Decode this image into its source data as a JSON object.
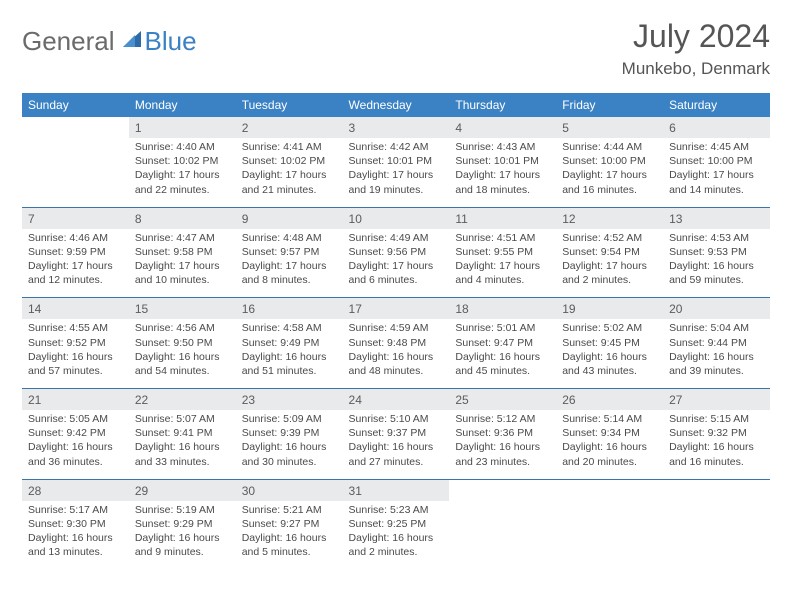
{
  "logo": {
    "text1": "General",
    "text2": "Blue"
  },
  "title": "July 2024",
  "location": "Munkebo, Denmark",
  "colors": {
    "header_bg": "#3b82c4",
    "header_text": "#ffffff",
    "daynum_bg": "#e9eaeb",
    "daynum_text": "#5c5c5c",
    "body_text": "#4a4a4a",
    "rule": "#3b75a8",
    "logo_gray": "#6b6b6b",
    "logo_blue": "#3b82c4"
  },
  "weekdays": [
    "Sunday",
    "Monday",
    "Tuesday",
    "Wednesday",
    "Thursday",
    "Friday",
    "Saturday"
  ],
  "weeks": [
    [
      null,
      {
        "d": "1",
        "sr": "4:40 AM",
        "ss": "10:02 PM",
        "dl": "17 hours and 22 minutes."
      },
      {
        "d": "2",
        "sr": "4:41 AM",
        "ss": "10:02 PM",
        "dl": "17 hours and 21 minutes."
      },
      {
        "d": "3",
        "sr": "4:42 AM",
        "ss": "10:01 PM",
        "dl": "17 hours and 19 minutes."
      },
      {
        "d": "4",
        "sr": "4:43 AM",
        "ss": "10:01 PM",
        "dl": "17 hours and 18 minutes."
      },
      {
        "d": "5",
        "sr": "4:44 AM",
        "ss": "10:00 PM",
        "dl": "17 hours and 16 minutes."
      },
      {
        "d": "6",
        "sr": "4:45 AM",
        "ss": "10:00 PM",
        "dl": "17 hours and 14 minutes."
      }
    ],
    [
      {
        "d": "7",
        "sr": "4:46 AM",
        "ss": "9:59 PM",
        "dl": "17 hours and 12 minutes."
      },
      {
        "d": "8",
        "sr": "4:47 AM",
        "ss": "9:58 PM",
        "dl": "17 hours and 10 minutes."
      },
      {
        "d": "9",
        "sr": "4:48 AM",
        "ss": "9:57 PM",
        "dl": "17 hours and 8 minutes."
      },
      {
        "d": "10",
        "sr": "4:49 AM",
        "ss": "9:56 PM",
        "dl": "17 hours and 6 minutes."
      },
      {
        "d": "11",
        "sr": "4:51 AM",
        "ss": "9:55 PM",
        "dl": "17 hours and 4 minutes."
      },
      {
        "d": "12",
        "sr": "4:52 AM",
        "ss": "9:54 PM",
        "dl": "17 hours and 2 minutes."
      },
      {
        "d": "13",
        "sr": "4:53 AM",
        "ss": "9:53 PM",
        "dl": "16 hours and 59 minutes."
      }
    ],
    [
      {
        "d": "14",
        "sr": "4:55 AM",
        "ss": "9:52 PM",
        "dl": "16 hours and 57 minutes."
      },
      {
        "d": "15",
        "sr": "4:56 AM",
        "ss": "9:50 PM",
        "dl": "16 hours and 54 minutes."
      },
      {
        "d": "16",
        "sr": "4:58 AM",
        "ss": "9:49 PM",
        "dl": "16 hours and 51 minutes."
      },
      {
        "d": "17",
        "sr": "4:59 AM",
        "ss": "9:48 PM",
        "dl": "16 hours and 48 minutes."
      },
      {
        "d": "18",
        "sr": "5:01 AM",
        "ss": "9:47 PM",
        "dl": "16 hours and 45 minutes."
      },
      {
        "d": "19",
        "sr": "5:02 AM",
        "ss": "9:45 PM",
        "dl": "16 hours and 43 minutes."
      },
      {
        "d": "20",
        "sr": "5:04 AM",
        "ss": "9:44 PM",
        "dl": "16 hours and 39 minutes."
      }
    ],
    [
      {
        "d": "21",
        "sr": "5:05 AM",
        "ss": "9:42 PM",
        "dl": "16 hours and 36 minutes."
      },
      {
        "d": "22",
        "sr": "5:07 AM",
        "ss": "9:41 PM",
        "dl": "16 hours and 33 minutes."
      },
      {
        "d": "23",
        "sr": "5:09 AM",
        "ss": "9:39 PM",
        "dl": "16 hours and 30 minutes."
      },
      {
        "d": "24",
        "sr": "5:10 AM",
        "ss": "9:37 PM",
        "dl": "16 hours and 27 minutes."
      },
      {
        "d": "25",
        "sr": "5:12 AM",
        "ss": "9:36 PM",
        "dl": "16 hours and 23 minutes."
      },
      {
        "d": "26",
        "sr": "5:14 AM",
        "ss": "9:34 PM",
        "dl": "16 hours and 20 minutes."
      },
      {
        "d": "27",
        "sr": "5:15 AM",
        "ss": "9:32 PM",
        "dl": "16 hours and 16 minutes."
      }
    ],
    [
      {
        "d": "28",
        "sr": "5:17 AM",
        "ss": "9:30 PM",
        "dl": "16 hours and 13 minutes."
      },
      {
        "d": "29",
        "sr": "5:19 AM",
        "ss": "9:29 PM",
        "dl": "16 hours and 9 minutes."
      },
      {
        "d": "30",
        "sr": "5:21 AM",
        "ss": "9:27 PM",
        "dl": "16 hours and 5 minutes."
      },
      {
        "d": "31",
        "sr": "5:23 AM",
        "ss": "9:25 PM",
        "dl": "16 hours and 2 minutes."
      },
      null,
      null,
      null
    ]
  ],
  "labels": {
    "sunrise": "Sunrise:",
    "sunset": "Sunset:",
    "daylight": "Daylight:"
  }
}
